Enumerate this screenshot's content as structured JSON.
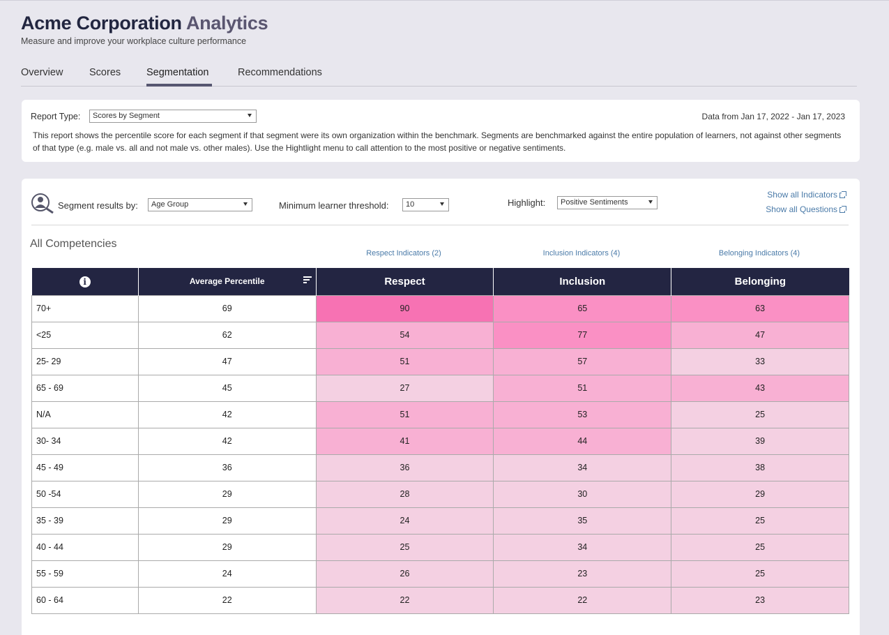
{
  "header": {
    "title_main": "Acme Corporation",
    "title_accent": "Analytics",
    "subtitle": "Measure and improve your workplace culture performance"
  },
  "tabs": [
    {
      "label": "Overview",
      "active": false
    },
    {
      "label": "Scores",
      "active": false
    },
    {
      "label": "Segmentation",
      "active": true
    },
    {
      "label": "Recommendations",
      "active": false
    }
  ],
  "report": {
    "type_label": "Report Type:",
    "type_value": "Scores by Segment",
    "date_range": "Data from Jan 17, 2022 - Jan 17, 2023",
    "description": "This report shows the percentile score for each segment if that segment were its own organization within the benchmark. Segments are benchmarked against the entire population of learners, not against other segments of that type (e.g. male vs. all and not male vs. other males). Use the Hightlight menu to call attention to the most positive or negative sentiments."
  },
  "controls": {
    "segment_label": "Segment results by:",
    "segment_value": "Age Group",
    "threshold_label": "Minimum learner threshold:",
    "threshold_value": "10",
    "highlight_label": "Highlight:",
    "highlight_value": "Positive Sentiments",
    "show_indicators": "Show all Indicators",
    "show_questions": "Show all Questions"
  },
  "section_title": "All Competencies",
  "indicator_links": {
    "respect": "Respect Indicators (2)",
    "inclusion": "Inclusion Indicators (4)",
    "belonging": "Belonging Indicators (4)"
  },
  "table": {
    "headers": {
      "avg": "Average Percentile",
      "respect": "Respect",
      "inclusion": "Inclusion",
      "belonging": "Belonging"
    },
    "rows": [
      {
        "segment": "70+",
        "avg": "69",
        "respect": "90",
        "inclusion": "65",
        "belonging": "63"
      },
      {
        "segment": "<25",
        "avg": "62",
        "respect": "54",
        "inclusion": "77",
        "belonging": "47"
      },
      {
        "segment": "25- 29",
        "avg": "47",
        "respect": "51",
        "inclusion": "57",
        "belonging": "33"
      },
      {
        "segment": "65 - 69",
        "avg": "45",
        "respect": "27",
        "inclusion": "51",
        "belonging": "43"
      },
      {
        "segment": "N/A",
        "avg": "42",
        "respect": "51",
        "inclusion": "53",
        "belonging": "25"
      },
      {
        "segment": "30- 34",
        "avg": "42",
        "respect": "41",
        "inclusion": "44",
        "belonging": "39"
      },
      {
        "segment": "45 - 49",
        "avg": "36",
        "respect": "36",
        "inclusion": "34",
        "belonging": "38"
      },
      {
        "segment": "50 -54",
        "avg": "29",
        "respect": "28",
        "inclusion": "30",
        "belonging": "29"
      },
      {
        "segment": "35 - 39",
        "avg": "29",
        "respect": "24",
        "inclusion": "35",
        "belonging": "25"
      },
      {
        "segment": "40 - 44",
        "avg": "29",
        "respect": "25",
        "inclusion": "34",
        "belonging": "25"
      },
      {
        "segment": "55 - 59",
        "avg": "24",
        "respect": "26",
        "inclusion": "23",
        "belonging": "25"
      },
      {
        "segment": "60 - 64",
        "avg": "22",
        "respect": "22",
        "inclusion": "22",
        "belonging": "23"
      }
    ]
  },
  "colors": {
    "header_bg": "#232542",
    "heat_high": "#f772b3",
    "heat_mid": "#fa90c4",
    "heat_low": "#f8b0d3",
    "heat_none": "#f4d0e2"
  }
}
